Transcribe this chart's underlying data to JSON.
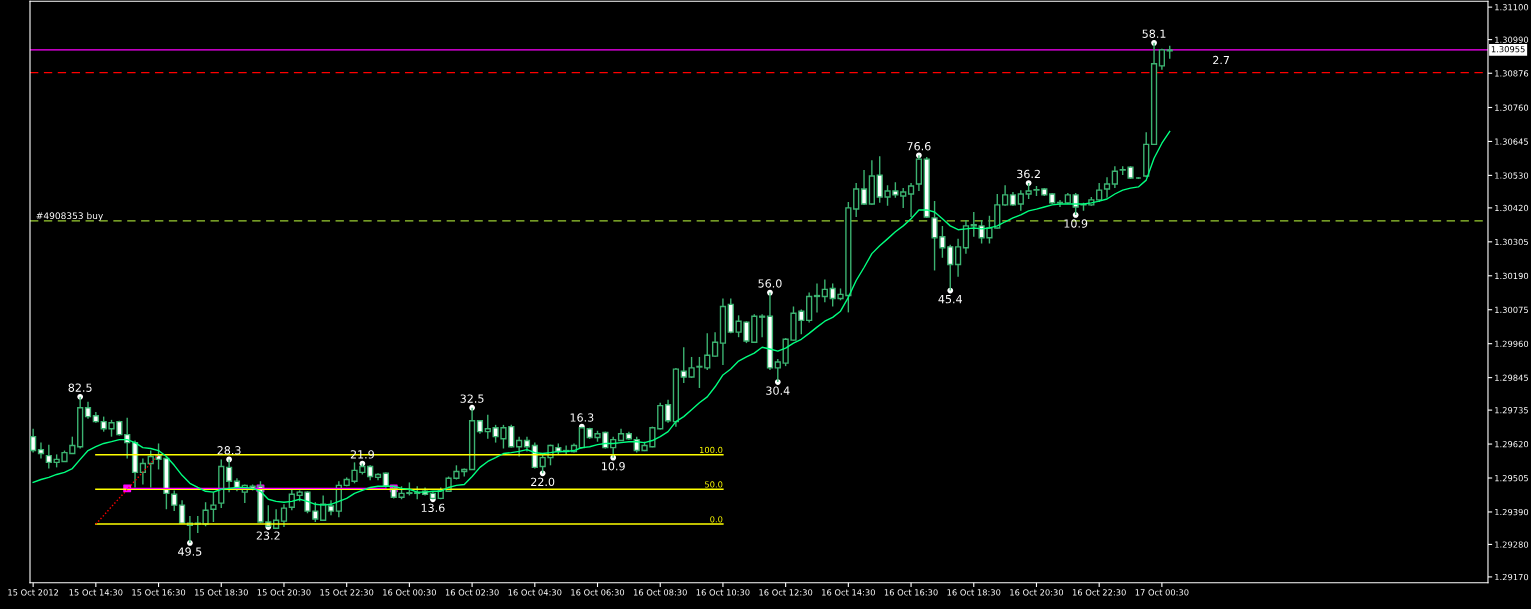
{
  "chart_data": {
    "type": "candlestick",
    "categories": [
      "15 Oct 2012",
      null,
      null,
      null,
      null,
      null,
      null,
      null,
      "15 Oct 14:30",
      null,
      null,
      null,
      null,
      null,
      null,
      null,
      "15 Oct 16:30",
      null,
      null,
      null,
      null,
      null,
      null,
      null,
      "15 Oct 18:30",
      null,
      null,
      null,
      null,
      null,
      null,
      null,
      "15 Oct 20:30",
      null,
      null,
      null,
      null,
      null,
      null,
      null,
      "15 Oct 22:30",
      null,
      null,
      null,
      null,
      null,
      null,
      null,
      "16 Oct 00:30",
      null,
      null,
      null,
      null,
      null,
      null,
      null,
      "16 Oct 02:30",
      null,
      null,
      null,
      null,
      null,
      null,
      null,
      "16 Oct 04:30",
      null,
      null,
      null,
      null,
      null,
      null,
      null,
      "16 Oct 06:30",
      null,
      null,
      null,
      null,
      null,
      null,
      null,
      "16 Oct 08:30",
      null,
      null,
      null,
      null,
      null,
      null,
      null,
      "16 Oct 10:30",
      null,
      null,
      null,
      null,
      null,
      null,
      null,
      "16 Oct 12:30",
      null,
      null,
      null,
      null,
      null,
      null,
      null,
      "16 Oct 14:30",
      null,
      null,
      null,
      null,
      null,
      null,
      null,
      "16 Oct 16:30",
      null,
      null,
      null,
      null,
      null,
      null,
      null,
      "16 Oct 18:30",
      null,
      null,
      null,
      null,
      null,
      null,
      null,
      "16 Oct 20:30",
      null,
      null,
      null,
      null,
      null,
      null,
      null,
      "16 Oct 22:30",
      null,
      null,
      null,
      null,
      null,
      null,
      null,
      "17 Oct 00:30",
      null
    ],
    "ohlc": [
      [
        1.29645,
        1.29672,
        1.29591,
        1.29598
      ],
      [
        1.29601,
        1.29625,
        1.29571,
        1.29588
      ],
      [
        1.29581,
        1.29618,
        1.29537,
        1.29558
      ],
      [
        1.29558,
        1.29585,
        1.29541,
        1.29568
      ],
      [
        1.29561,
        1.29598,
        1.29561,
        1.29591
      ],
      [
        1.29588,
        1.29645,
        1.29588,
        1.29615
      ],
      [
        1.29611,
        1.2978,
        1.29605,
        1.29743
      ],
      [
        1.29743,
        1.29763,
        1.29706,
        1.29713
      ],
      [
        1.29716,
        1.29729,
        1.29692,
        1.29696
      ],
      [
        1.29696,
        1.29713,
        1.29662,
        1.29672
      ],
      [
        1.29672,
        1.29702,
        1.29645,
        1.29692
      ],
      [
        1.29696,
        1.29699,
        1.29649,
        1.29652
      ],
      [
        1.29652,
        1.29709,
        1.29571,
        1.29625
      ],
      [
        1.29625,
        1.29632,
        1.29473,
        1.29524
      ],
      [
        1.29524,
        1.29571,
        1.29483,
        1.29554
      ],
      [
        1.29554,
        1.29598,
        1.29473,
        1.29578
      ],
      [
        1.29581,
        1.29622,
        1.29534,
        1.29568
      ],
      [
        1.29571,
        1.29574,
        1.29399,
        1.29453
      ],
      [
        1.2945,
        1.29463,
        1.29393,
        1.29413
      ],
      [
        1.29413,
        1.2943,
        1.29349,
        1.29352
      ],
      [
        1.29345,
        1.29376,
        1.29285,
        1.29352
      ],
      [
        1.29349,
        1.29376,
        1.29319,
        1.29352
      ],
      [
        1.29349,
        1.29423,
        1.29342,
        1.29396
      ],
      [
        1.29399,
        1.29457,
        1.29356,
        1.29413
      ],
      [
        1.2942,
        1.29568,
        1.29403,
        1.29544
      ],
      [
        1.29541,
        1.29568,
        1.29457,
        1.29494
      ],
      [
        1.29494,
        1.29504,
        1.2946,
        1.29467
      ],
      [
        1.29457,
        1.29483,
        1.2942,
        1.2948
      ],
      [
        1.29477,
        1.29483,
        1.29463,
        1.2947
      ],
      [
        1.29477,
        1.29494,
        1.29352,
        1.29356
      ],
      [
        1.29356,
        1.29413,
        1.29339,
        1.29342
      ],
      [
        1.29335,
        1.29399,
        1.29335,
        1.29362
      ],
      [
        1.29359,
        1.29416,
        1.29339,
        1.29403
      ],
      [
        1.29406,
        1.29467,
        1.29396,
        1.2945
      ],
      [
        1.29446,
        1.29463,
        1.29426,
        1.29457
      ],
      [
        1.29457,
        1.2946,
        1.29386,
        1.29393
      ],
      [
        1.29393,
        1.29423,
        1.29356,
        1.29366
      ],
      [
        1.29362,
        1.29446,
        1.29362,
        1.29416
      ],
      [
        1.2941,
        1.2943,
        1.29379,
        1.29393
      ],
      [
        1.29393,
        1.29494,
        1.29372,
        1.2948
      ],
      [
        1.2948,
        1.29507,
        1.29477,
        1.295
      ],
      [
        1.29494,
        1.29558,
        1.29487,
        1.29531
      ],
      [
        1.29524,
        1.29554,
        1.29517,
        1.29544
      ],
      [
        1.29544,
        1.29548,
        1.29497,
        1.2951
      ],
      [
        1.29507,
        1.29521,
        1.29497,
        1.29517
      ],
      [
        1.29521,
        1.29524,
        1.29473,
        1.29477
      ],
      [
        1.29467,
        1.2948,
        1.29436,
        1.2944
      ],
      [
        1.2944,
        1.29477,
        1.29433,
        1.29453
      ],
      [
        1.29453,
        1.2949,
        1.29446,
        1.29455
      ],
      [
        1.29453,
        1.29477,
        1.29433,
        1.29455
      ],
      [
        1.2946,
        1.29473,
        1.29446,
        1.2945
      ],
      [
        1.29453,
        1.2946,
        1.29433,
        1.29436
      ],
      [
        1.29436,
        1.29473,
        1.29433,
        1.29463
      ],
      [
        1.2946,
        1.2951,
        1.29458,
        1.29504
      ],
      [
        1.29504,
        1.29548,
        1.295,
        1.29527
      ],
      [
        1.29527,
        1.29537,
        1.2951,
        1.29534
      ],
      [
        1.29534,
        1.29743,
        1.29532,
        1.29699
      ],
      [
        1.29699,
        1.29701,
        1.29655,
        1.29662
      ],
      [
        1.29662,
        1.29719,
        1.29638,
        1.29672
      ],
      [
        1.29675,
        1.29685,
        1.29625,
        1.29645
      ],
      [
        1.29638,
        1.29685,
        1.29605,
        1.29675
      ],
      [
        1.29679,
        1.29685,
        1.29608,
        1.29611
      ],
      [
        1.29611,
        1.29645,
        1.29578,
        1.29632
      ],
      [
        1.29632,
        1.29645,
        1.29595,
        1.29611
      ],
      [
        1.29615,
        1.29625,
        1.29537,
        1.29541
      ],
      [
        1.29544,
        1.29585,
        1.29521,
        1.29574
      ],
      [
        1.29574,
        1.29618,
        1.29548,
        1.29615
      ],
      [
        1.29608,
        1.29622,
        1.29585,
        1.29595
      ],
      [
        1.29598,
        1.29615,
        1.29585,
        1.29595
      ],
      [
        1.29595,
        1.29622,
        1.29591,
        1.29615
      ],
      [
        1.29608,
        1.29679,
        1.29605,
        1.29675
      ],
      [
        1.29672,
        1.29675,
        1.29638,
        1.29642
      ],
      [
        1.29642,
        1.29665,
        1.29628,
        1.29655
      ],
      [
        1.29659,
        1.29662,
        1.29605,
        1.29608
      ],
      [
        1.29608,
        1.29645,
        1.29574,
        1.29635
      ],
      [
        1.29632,
        1.29672,
        1.2963,
        1.29655
      ],
      [
        1.29655,
        1.29662,
        1.29635,
        1.29638
      ],
      [
        1.29635,
        1.29645,
        1.29591,
        1.29598
      ],
      [
        1.29598,
        1.29628,
        1.29596,
        1.29615
      ],
      [
        1.29611,
        1.29679,
        1.29609,
        1.29675
      ],
      [
        1.29672,
        1.2976,
        1.29669,
        1.2975
      ],
      [
        1.29753,
        1.2977,
        1.29692,
        1.29699
      ],
      [
        1.29696,
        1.29878,
        1.29679,
        1.29874
      ],
      [
        1.29867,
        1.29948,
        1.29827,
        1.29847
      ],
      [
        1.29847,
        1.29915,
        1.29844,
        1.29878
      ],
      [
        1.29881,
        1.29915,
        1.2981,
        1.29883
      ],
      [
        1.29878,
        1.29995,
        1.29871,
        1.29921
      ],
      [
        1.29918,
        1.29999,
        1.29916,
        1.29965
      ],
      [
        1.29962,
        1.30113,
        1.29888,
        1.30086
      ],
      [
        1.30093,
        1.30113,
        1.29995,
        1.29999
      ],
      [
        1.29999,
        1.30056,
        1.29982,
        1.30036
      ],
      [
        1.30033,
        1.30036,
        1.29962,
        1.29969
      ],
      [
        1.29965,
        1.3006,
        1.29963,
        1.30053
      ],
      [
        1.30053,
        1.3006,
        1.29982,
        1.3005
      ],
      [
        1.30053,
        1.30133,
        1.29871,
        1.29878
      ],
      [
        1.29878,
        1.29908,
        1.2983,
        1.29898
      ],
      [
        1.29894,
        1.29979,
        1.29884,
        1.29975
      ],
      [
        1.29972,
        1.30086,
        1.2997,
        1.30063
      ],
      [
        1.3007,
        1.30076,
        1.29992,
        1.30039
      ],
      [
        1.30039,
        1.30133,
        1.30032,
        1.3012
      ],
      [
        1.3012,
        1.30164,
        1.30066,
        1.30123
      ],
      [
        1.3012,
        1.30177,
        1.301,
        1.30144
      ],
      [
        1.30147,
        1.30164,
        1.30086,
        1.30113
      ],
      [
        1.30113,
        1.30147,
        1.30107,
        1.30127
      ],
      [
        1.30123,
        1.3044,
        1.30066,
        1.3042
      ],
      [
        1.30416,
        1.30504,
        1.30389,
        1.30484
      ],
      [
        1.30484,
        1.30548,
        1.3043,
        1.30433
      ],
      [
        1.30433,
        1.30581,
        1.30431,
        1.30528
      ],
      [
        1.30531,
        1.30595,
        1.30437,
        1.30457
      ],
      [
        1.30457,
        1.30497,
        1.30427,
        1.30477
      ],
      [
        1.30477,
        1.30507,
        1.30454,
        1.30464
      ],
      [
        1.3046,
        1.30487,
        1.3042,
        1.30474
      ],
      [
        1.30467,
        1.30504,
        1.30389,
        1.30494
      ],
      [
        1.30501,
        1.30598,
        1.30477,
        1.30585
      ],
      [
        1.30585,
        1.30592,
        1.30386,
        1.30389
      ],
      [
        1.30386,
        1.30443,
        1.30208,
        1.30319
      ],
      [
        1.30322,
        1.30359,
        1.30251,
        1.30285
      ],
      [
        1.30288,
        1.30295,
        1.3014,
        1.30228
      ],
      [
        1.30228,
        1.30315,
        1.30187,
        1.30288
      ],
      [
        1.30285,
        1.30379,
        1.30265,
        1.30359
      ],
      [
        1.30359,
        1.30406,
        1.30322,
        1.30363
      ],
      [
        1.30359,
        1.30379,
        1.30299,
        1.30319
      ],
      [
        1.30319,
        1.30393,
        1.30299,
        1.30352
      ],
      [
        1.30352,
        1.30467,
        1.3035,
        1.3043
      ],
      [
        1.3043,
        1.30497,
        1.30427,
        1.30464
      ],
      [
        1.30464,
        1.30474,
        1.30427,
        1.3043
      ],
      [
        1.30433,
        1.3048,
        1.3041,
        1.30467
      ],
      [
        1.30467,
        1.30504,
        1.3045,
        1.30477
      ],
      [
        1.3048,
        1.30494,
        1.3046,
        1.30482
      ],
      [
        1.30484,
        1.30487,
        1.3046,
        1.30464
      ],
      [
        1.30467,
        1.3047,
        1.30433,
        1.30437
      ],
      [
        1.30437,
        1.30447,
        1.30423,
        1.30438
      ],
      [
        1.30437,
        1.3047,
        1.30433,
        1.30464
      ],
      [
        1.30464,
        1.3047,
        1.30396,
        1.30423
      ],
      [
        1.3043,
        1.30437,
        1.3041,
        1.30431
      ],
      [
        1.3043,
        1.30457,
        1.30427,
        1.30447
      ],
      [
        1.30447,
        1.30504,
        1.3044,
        1.3048
      ],
      [
        1.30484,
        1.30524,
        1.30454,
        1.30501
      ],
      [
        1.30501,
        1.30561,
        1.30487,
        1.30544
      ],
      [
        1.30548,
        1.30561,
        1.30531,
        1.30549
      ],
      [
        1.30558,
        1.30561,
        1.30518,
        1.30521
      ],
      [
        1.30521,
        1.30524,
        1.30518,
        1.30521
      ],
      [
        1.30528,
        1.30676,
        1.30524,
        1.30635
      ],
      [
        1.30635,
        1.30979,
        1.30633,
        1.30908
      ],
      [
        1.30901,
        1.30959,
        1.30888,
        1.30955
      ],
      [
        1.30952,
        1.30969,
        1.30925,
        1.30955
      ]
    ],
    "series": [
      {
        "type": "line",
        "color": "#00ff7f",
        "values": [
          1.2949,
          1.295,
          1.29507,
          1.29517,
          1.29524,
          1.29537,
          1.29568,
          1.29598,
          1.29611,
          1.29622,
          1.29628,
          1.29635,
          1.29635,
          1.29625,
          1.29608,
          1.29605,
          1.29598,
          1.29578,
          1.29548,
          1.29514,
          1.29487,
          1.29473,
          1.2946,
          1.29457,
          1.29467,
          1.2947,
          1.29473,
          1.29473,
          1.2947,
          1.2946,
          1.29433,
          1.29426,
          1.29423,
          1.29426,
          1.29433,
          1.29426,
          1.29416,
          1.29413,
          1.29416,
          1.29426,
          1.29436,
          1.29453,
          1.29463,
          1.29473,
          1.29477,
          1.29477,
          1.29477,
          1.2947,
          1.29467,
          1.29457,
          1.29457,
          1.2946,
          1.2946,
          1.29473,
          1.2948,
          1.29483,
          1.2951,
          1.29541,
          1.29561,
          1.29574,
          1.29588,
          1.29591,
          1.29595,
          1.29601,
          1.29591,
          1.29588,
          1.29591,
          1.29595,
          1.29595,
          1.29598,
          1.29608,
          1.29611,
          1.29618,
          1.29622,
          1.29622,
          1.29625,
          1.29628,
          1.29628,
          1.29625,
          1.29632,
          1.29645,
          1.29662,
          1.29696,
          1.29713,
          1.29736,
          1.2976,
          1.2978,
          1.29814,
          1.29854,
          1.29874,
          1.29901,
          1.29915,
          1.29928,
          1.29948,
          1.29942,
          1.29935,
          1.29945,
          1.29962,
          1.29975,
          1.29995,
          1.30016,
          1.30036,
          1.30049,
          1.3007,
          1.30117,
          1.30174,
          1.30218,
          1.30265,
          1.30292,
          1.30315,
          1.30339,
          1.30359,
          1.30383,
          1.30413,
          1.30413,
          1.30406,
          1.30383,
          1.30359,
          1.30346,
          1.30349,
          1.30352,
          1.30349,
          1.30352,
          1.30359,
          1.30373,
          1.30386,
          1.30396,
          1.3041,
          1.30416,
          1.30423,
          1.3043,
          1.30433,
          1.30433,
          1.30433,
          1.30433,
          1.30437,
          1.30443,
          1.3045,
          1.30467,
          1.3048,
          1.30487,
          1.30491,
          1.30514,
          1.30588,
          1.30639,
          1.30679
        ]
      },
      {
        "type": "line",
        "color": "#ff00ff",
        "values": [
          null,
          null,
          null,
          null,
          null,
          null,
          null,
          null,
          null,
          null,
          null,
          null,
          1.2947,
          1.2947,
          1.2947,
          1.2947,
          1.2947,
          1.2947,
          1.2947,
          1.2947,
          1.2947,
          1.2947,
          1.2947,
          1.2947,
          1.2947,
          1.2947,
          1.2947,
          1.2947,
          1.2947,
          1.2947,
          1.2947,
          1.2947,
          1.2947,
          1.2947,
          1.2947,
          1.2947,
          1.2947,
          1.2947,
          1.2947,
          1.2947,
          1.2947,
          1.2947,
          1.2947,
          1.2947,
          1.2947,
          1.2947,
          null,
          null,
          null,
          null,
          null,
          null,
          null,
          null,
          null,
          null,
          null,
          null,
          null,
          null,
          null,
          null,
          null,
          null,
          null,
          null,
          null,
          null,
          null,
          null,
          null,
          null,
          null,
          null,
          null,
          null,
          null,
          null,
          null,
          null,
          null,
          null,
          null,
          null,
          null,
          null,
          null,
          null,
          null,
          null,
          null,
          null,
          null,
          null,
          null,
          null,
          null,
          null,
          null,
          null,
          null,
          null,
          null,
          null,
          null,
          null,
          null,
          null,
          null,
          null,
          null,
          null,
          null,
          null,
          null,
          null,
          null,
          null,
          null,
          null,
          null,
          null,
          null,
          null,
          null,
          null,
          null,
          null,
          null,
          null,
          null,
          null,
          null,
          null,
          null,
          null,
          null,
          null,
          null,
          null,
          null,
          null,
          null,
          null,
          null,
          null
        ]
      },
      {
        "type": "scatter",
        "color": "#ff00ff",
        "marker": "square",
        "values": [
          null,
          null,
          null,
          null,
          null,
          null,
          null,
          null,
          null,
          null,
          null,
          null,
          1.2947,
          null,
          null,
          null,
          null,
          null,
          null,
          null,
          null,
          null,
          null,
          null,
          null,
          null,
          null,
          null,
          null,
          1.2947,
          null,
          null,
          null,
          null,
          null,
          null,
          null,
          null,
          null,
          null,
          null,
          null,
          null,
          null,
          null,
          null,
          1.2947,
          null,
          null,
          null,
          null,
          null,
          null,
          null,
          null,
          null,
          null,
          null,
          null,
          null,
          null,
          null,
          null,
          null,
          null,
          null,
          null,
          null,
          null,
          null,
          null,
          null,
          null,
          null,
          null,
          null,
          null,
          null,
          null,
          null,
          null,
          null,
          null,
          null,
          null,
          null,
          null,
          null,
          null,
          null,
          null,
          null,
          null,
          null,
          null,
          null,
          null,
          null,
          null,
          null,
          null,
          null,
          null,
          null,
          null,
          null,
          null,
          null,
          null,
          null,
          null,
          null,
          null,
          null,
          null,
          null,
          null,
          null,
          null,
          null,
          null,
          null,
          null,
          null,
          null,
          null,
          null,
          null,
          null,
          null,
          null,
          null,
          null,
          null,
          null,
          null,
          null,
          null,
          null,
          null,
          null,
          null,
          null,
          null,
          null,
          null
        ]
      },
      {
        "type": "line",
        "color": "#ff0000",
        "line_style": "dotted",
        "values": [
          null,
          null,
          null,
          null,
          null,
          null,
          null,
          null,
          1.29349,
          1.29378,
          1.29408,
          1.29437,
          1.29466,
          1.29496,
          1.29525,
          1.29555,
          1.29584,
          null,
          null,
          null,
          null,
          null,
          null,
          null,
          null,
          null,
          null,
          null,
          null,
          null,
          null,
          null,
          null,
          null,
          null,
          null,
          null,
          null,
          null,
          null,
          null,
          null,
          null,
          null,
          null,
          null,
          null,
          null,
          null,
          null,
          null,
          null,
          null,
          null,
          null,
          null,
          null,
          null,
          null,
          null,
          null,
          null,
          null,
          null,
          null,
          null,
          null,
          null,
          null,
          null,
          null,
          null,
          null,
          null,
          null,
          null,
          null,
          null,
          null,
          null,
          null,
          null,
          null,
          null,
          null,
          null,
          null,
          null,
          null,
          null,
          null,
          null,
          null,
          null,
          null,
          null,
          null,
          null,
          null,
          null,
          null,
          null,
          null,
          null,
          null,
          null,
          null,
          null,
          null,
          null,
          null,
          null,
          null,
          null,
          null,
          null,
          null,
          null,
          null,
          null,
          null,
          null,
          null,
          null,
          null,
          null,
          null,
          null,
          null,
          null,
          null,
          null,
          null,
          null,
          null,
          null,
          null,
          null,
          null,
          null,
          null,
          null,
          null,
          null,
          null,
          null
        ]
      },
      {
        "type": "line",
        "name": "100.0",
        "color": "#ffff00",
        "values": [
          null,
          null,
          null,
          null,
          null,
          null,
          null,
          null,
          1.29584,
          1.29584,
          1.29584,
          1.29584,
          1.29584,
          1.29584,
          1.29584,
          1.29584,
          1.29584,
          1.29584,
          1.29584,
          1.29584,
          1.29584,
          1.29584,
          1.29584,
          1.29584,
          1.29584,
          1.29584,
          1.29584,
          1.29584,
          1.29584,
          1.29584,
          1.29584,
          1.29584,
          1.29584,
          1.29584,
          1.29584,
          1.29584,
          1.29584,
          1.29584,
          1.29584,
          1.29584,
          1.29584,
          1.29584,
          1.29584,
          1.29584,
          1.29584,
          1.29584,
          1.29584,
          1.29584,
          1.29584,
          1.29584,
          1.29584,
          1.29584,
          1.29584,
          1.29584,
          1.29584,
          1.29584,
          1.29584,
          1.29584,
          1.29584,
          1.29584,
          1.29584,
          1.29584,
          1.29584,
          1.29584,
          1.29584,
          1.29584,
          1.29584,
          1.29584,
          1.29584,
          1.29584,
          1.29584,
          1.29584,
          1.29584,
          1.29584,
          1.29584,
          1.29584,
          1.29584,
          1.29584,
          1.29584,
          1.29584,
          1.29584,
          1.29584,
          1.29584,
          1.29584,
          1.29584,
          1.29584,
          1.29584,
          1.29584,
          1.29584,
          null,
          null,
          null,
          null,
          null,
          null,
          null,
          null,
          null,
          null,
          null,
          null,
          null,
          null,
          null,
          null,
          null,
          null,
          null,
          null,
          null,
          null,
          null,
          null,
          null,
          null,
          null,
          null,
          null,
          null,
          null,
          null,
          null,
          null,
          null,
          null,
          null,
          null,
          null,
          null,
          null,
          null,
          null,
          null,
          null,
          null,
          null,
          null,
          null,
          null,
          null,
          null,
          null,
          null,
          null,
          null,
          null
        ]
      },
      {
        "type": "line",
        "name": "50.0",
        "color": "#ffff00",
        "values": [
          null,
          null,
          null,
          null,
          null,
          null,
          null,
          null,
          1.29467,
          1.29467,
          1.29467,
          1.29467,
          1.29467,
          1.29467,
          1.29467,
          1.29467,
          1.29467,
          1.29467,
          1.29467,
          1.29467,
          1.29467,
          1.29467,
          1.29467,
          1.29467,
          1.29467,
          1.29467,
          1.29467,
          1.29467,
          1.29467,
          1.29467,
          1.29467,
          1.29467,
          1.29467,
          1.29467,
          1.29467,
          1.29467,
          1.29467,
          1.29467,
          1.29467,
          1.29467,
          1.29467,
          1.29467,
          1.29467,
          1.29467,
          1.29467,
          1.29467,
          1.29467,
          1.29467,
          1.29467,
          1.29467,
          1.29467,
          1.29467,
          1.29467,
          1.29467,
          1.29467,
          1.29467,
          1.29467,
          1.29467,
          1.29467,
          1.29467,
          1.29467,
          1.29467,
          1.29467,
          1.29467,
          1.29467,
          1.29467,
          1.29467,
          1.29467,
          1.29467,
          1.29467,
          1.29467,
          1.29467,
          1.29467,
          1.29467,
          1.29467,
          1.29467,
          1.29467,
          1.29467,
          1.29467,
          1.29467,
          1.29467,
          1.29467,
          1.29467,
          1.29467,
          1.29467,
          1.29467,
          1.29467,
          1.29467,
          1.29467,
          null,
          null,
          null,
          null,
          null,
          null,
          null,
          null,
          null,
          null,
          null,
          null,
          null,
          null,
          null,
          null,
          null,
          null,
          null,
          null,
          null,
          null,
          null,
          null,
          null,
          null,
          null,
          null,
          null,
          null,
          null,
          null,
          null,
          null,
          null,
          null,
          null,
          null,
          null,
          null,
          null,
          null,
          null,
          null,
          null,
          null,
          null,
          null,
          null,
          null,
          null,
          null,
          null,
          null,
          null,
          null,
          null
        ]
      },
      {
        "type": "line",
        "name": "0.0",
        "color": "#ffff00",
        "values": [
          null,
          null,
          null,
          null,
          null,
          null,
          null,
          null,
          1.29349,
          1.29349,
          1.29349,
          1.29349,
          1.29349,
          1.29349,
          1.29349,
          1.29349,
          1.29349,
          1.29349,
          1.29349,
          1.29349,
          1.29349,
          1.29349,
          1.29349,
          1.29349,
          1.29349,
          1.29349,
          1.29349,
          1.29349,
          1.29349,
          1.29349,
          1.29349,
          1.29349,
          1.29349,
          1.29349,
          1.29349,
          1.29349,
          1.29349,
          1.29349,
          1.29349,
          1.29349,
          1.29349,
          1.29349,
          1.29349,
          1.29349,
          1.29349,
          1.29349,
          1.29349,
          1.29349,
          1.29349,
          1.29349,
          1.29349,
          1.29349,
          1.29349,
          1.29349,
          1.29349,
          1.29349,
          1.29349,
          1.29349,
          1.29349,
          1.29349,
          1.29349,
          1.29349,
          1.29349,
          1.29349,
          1.29349,
          1.29349,
          1.29349,
          1.29349,
          1.29349,
          1.29349,
          1.29349,
          1.29349,
          1.29349,
          1.29349,
          1.29349,
          1.29349,
          1.29349,
          1.29349,
          1.29349,
          1.29349,
          1.29349,
          1.29349,
          1.29349,
          1.29349,
          1.29349,
          1.29349,
          1.29349,
          1.29349,
          1.29349,
          null,
          null,
          null,
          null,
          null,
          null,
          null,
          null,
          null,
          null,
          null,
          null,
          null,
          null,
          null,
          null,
          null,
          null,
          null,
          null,
          null,
          null,
          null,
          null,
          null,
          null,
          null,
          null,
          null,
          null,
          null,
          null,
          null,
          null,
          null,
          null,
          null,
          null,
          null,
          null,
          null,
          null,
          null,
          null,
          null,
          null,
          null,
          null,
          null,
          null,
          null,
          null,
          null,
          null,
          null,
          null,
          null
        ]
      },
      {
        "type": "scatter",
        "color": "#ffffff",
        "values": [
          null,
          null,
          null,
          null,
          null,
          null,
          1.2978,
          null,
          null,
          null,
          null,
          null,
          null,
          null,
          null,
          null,
          null,
          null,
          null,
          null,
          1.29285,
          null,
          null,
          null,
          null,
          1.29568,
          null,
          null,
          null,
          null,
          1.29339,
          null,
          null,
          null,
          null,
          null,
          null,
          null,
          null,
          null,
          null,
          null,
          1.29554,
          null,
          null,
          null,
          null,
          null,
          null,
          null,
          null,
          1.29433,
          null,
          null,
          null,
          null,
          1.29743,
          null,
          null,
          null,
          null,
          null,
          null,
          null,
          null,
          1.29521,
          null,
          null,
          null,
          null,
          1.29679,
          null,
          null,
          null,
          1.29574,
          null,
          null,
          null,
          null,
          null,
          null,
          null,
          null,
          null,
          null,
          null,
          null,
          null,
          null,
          null,
          null,
          null,
          null,
          null,
          1.30133,
          1.2983,
          null,
          null,
          null,
          null,
          null,
          null,
          null,
          null,
          null,
          null,
          null,
          null,
          null,
          null,
          null,
          null,
          null,
          1.30598,
          null,
          null,
          null,
          1.3014,
          null,
          null,
          null,
          null,
          null,
          null,
          null,
          null,
          null,
          1.30504,
          null,
          null,
          null,
          null,
          null,
          1.30396,
          null,
          null,
          null,
          null,
          null,
          null,
          null,
          null,
          null,
          1.30979,
          null,
          null
        ],
        "marker": "circle"
      }
    ],
    "ref_lines": [
      {
        "axis": "y",
        "value": 1.30955,
        "label": "1.30955",
        "color": "#ff00ff",
        "line_style": "solid"
      },
      {
        "axis": "y",
        "value": 1.30878,
        "color": "#ff0000",
        "line_style": "dashed"
      },
      {
        "axis": "y",
        "value": 1.30376,
        "label": "#4908353 buy",
        "color": "#9acd32",
        "line_style": "dashed"
      }
    ],
    "annotations": [
      "82.5",
      "49.5",
      "28.3",
      "23.2",
      "21.9",
      "13.6",
      "32.5",
      "22.0",
      "16.3",
      "10.9",
      "56.0",
      "30.4",
      "76.6",
      "45.4",
      "36.2",
      "10.9",
      "58.1",
      "2.7"
    ],
    "ylim": [
      1.2915,
      1.3112
    ],
    "yticks": [
      {
        "value": 1.311,
        "label": "1.31100"
      },
      {
        "value": 1.3099,
        "label": "1.30990"
      },
      {
        "value": 1.30876,
        "label": "1.30876"
      },
      {
        "value": 1.3076,
        "label": "1.30760"
      },
      {
        "value": 1.30645,
        "label": "1.30645"
      },
      {
        "value": 1.3053,
        "label": "1.30530"
      },
      {
        "value": 1.3042,
        "label": "1.30420"
      },
      {
        "value": 1.30305,
        "label": "1.30305"
      },
      {
        "value": 1.3019,
        "label": "1.30190"
      },
      {
        "value": 1.30075,
        "label": "1.30075"
      },
      {
        "value": 1.2996,
        "label": "1.29960"
      },
      {
        "value": 1.29845,
        "label": "1.29845"
      },
      {
        "value": 1.29735,
        "label": "1.29735"
      },
      {
        "value": 1.2962,
        "label": "1.29620"
      },
      {
        "value": 1.29505,
        "label": "1.29505"
      },
      {
        "value": 1.2939,
        "label": "1.29390"
      },
      {
        "value": 1.2928,
        "label": "1.29280"
      },
      {
        "value": 1.2917,
        "label": "1.29170"
      }
    ],
    "grid": false
  }
}
